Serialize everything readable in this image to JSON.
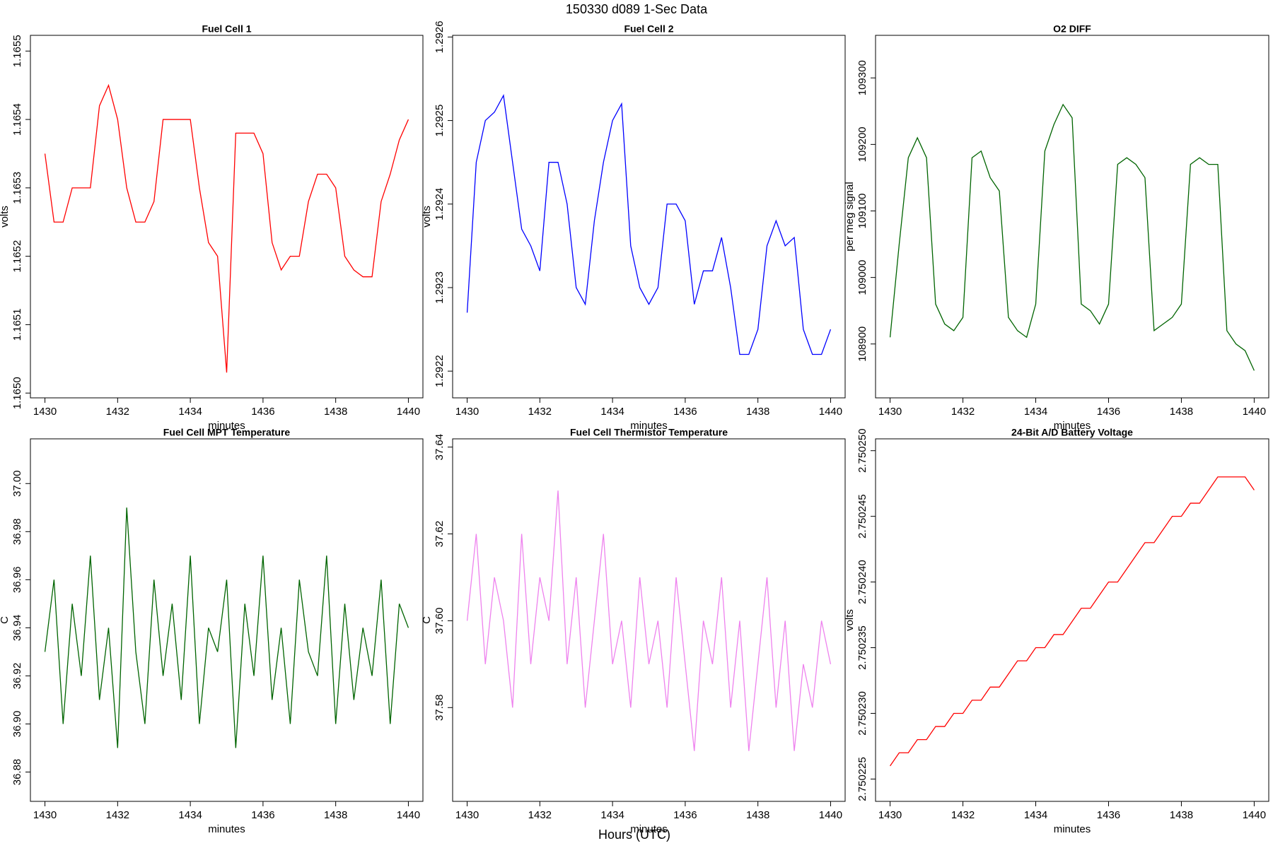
{
  "suptitle": "150330   d089   1-Sec Data",
  "supxlabel": "Hours (UTC)",
  "chart_data": [
    {
      "type": "line",
      "title": "Fuel Cell 1",
      "xlabel": "minutes",
      "ylabel": "volts",
      "x": [
        1430,
        1430.25,
        1430.5,
        1430.75,
        1431,
        1431.25,
        1431.5,
        1431.75,
        1432,
        1432.25,
        1432.5,
        1432.75,
        1433,
        1433.25,
        1433.5,
        1433.75,
        1434,
        1434.25,
        1434.5,
        1434.75,
        1435,
        1435.25,
        1435.5,
        1435.75,
        1436,
        1436.25,
        1436.5,
        1436.75,
        1437,
        1437.25,
        1437.5,
        1437.75,
        1438,
        1438.25,
        1438.5,
        1438.75,
        1439,
        1439.25,
        1439.5,
        1439.75,
        1440
      ],
      "series": [
        {
          "color": "#ff0000",
          "values": [
            1.16535,
            1.16525,
            1.16525,
            1.1653,
            1.1653,
            1.1653,
            1.16542,
            1.16545,
            1.1654,
            1.1653,
            1.16525,
            1.16525,
            1.16528,
            1.1654,
            1.1654,
            1.1654,
            1.1654,
            1.1653,
            1.16522,
            1.1652,
            1.16503,
            1.16538,
            1.16538,
            1.16538,
            1.16535,
            1.16522,
            1.16518,
            1.1652,
            1.1652,
            1.16528,
            1.16532,
            1.16532,
            1.1653,
            1.1652,
            1.16518,
            1.16517,
            1.16517,
            1.16528,
            1.16532,
            1.16537,
            1.1654
          ]
        }
      ],
      "xlim": [
        1429.6,
        1440.4
      ],
      "xticks": [
        1430,
        1432,
        1434,
        1436,
        1438,
        1440
      ],
      "ylim": [
        1.164993,
        1.165523
      ],
      "yticks": [
        {
          "value": 1.165,
          "label": "1.1650"
        },
        1.1651,
        1.1652,
        1.1653,
        1.1654,
        1.1655
      ]
    },
    {
      "type": "line",
      "title": "Fuel Cell 2",
      "xlabel": "minutes",
      "ylabel": "volts",
      "x": [
        1430,
        1430.25,
        1430.5,
        1430.75,
        1431,
        1431.25,
        1431.5,
        1431.75,
        1432,
        1432.25,
        1432.5,
        1432.75,
        1433,
        1433.25,
        1433.5,
        1433.75,
        1434,
        1434.25,
        1434.5,
        1434.75,
        1435,
        1435.25,
        1435.5,
        1435.75,
        1436,
        1436.25,
        1436.5,
        1436.75,
        1437,
        1437.25,
        1437.5,
        1437.75,
        1438,
        1438.25,
        1438.5,
        1438.75,
        1439,
        1439.25,
        1439.5,
        1439.75,
        1440
      ],
      "series": [
        {
          "color": "#0000ff",
          "values": [
            1.29227,
            1.29245,
            1.2925,
            1.29251,
            1.29253,
            1.29245,
            1.29237,
            1.29235,
            1.29232,
            1.29245,
            1.29245,
            1.2924,
            1.2923,
            1.29228,
            1.29238,
            1.29245,
            1.2925,
            1.29252,
            1.29235,
            1.2923,
            1.29228,
            1.2923,
            1.2924,
            1.2924,
            1.29238,
            1.29228,
            1.29232,
            1.29232,
            1.29236,
            1.2923,
            1.29222,
            1.29222,
            1.29225,
            1.29235,
            1.29238,
            1.29235,
            1.29236,
            1.29225,
            1.29222,
            1.29222,
            1.29225
          ]
        }
      ],
      "xlim": [
        1429.6,
        1440.4
      ],
      "xticks": [
        1430,
        1432,
        1434,
        1436,
        1438,
        1440
      ],
      "ylim": [
        1.292168,
        1.292602
      ],
      "yticks": [
        1.2922,
        1.2923,
        1.2924,
        1.2925,
        1.2926
      ]
    },
    {
      "type": "line",
      "title": "O2 DIFF",
      "xlabel": "minutes",
      "ylabel": "per meg signal",
      "x": [
        1430,
        1430.25,
        1430.5,
        1430.75,
        1431,
        1431.25,
        1431.5,
        1431.75,
        1432,
        1432.25,
        1432.5,
        1432.75,
        1433,
        1433.25,
        1433.5,
        1433.75,
        1434,
        1434.25,
        1434.5,
        1434.75,
        1435,
        1435.25,
        1435.5,
        1435.75,
        1436,
        1436.25,
        1436.5,
        1436.75,
        1437,
        1437.25,
        1437.5,
        1437.75,
        1438,
        1438.25,
        1438.5,
        1438.75,
        1439,
        1439.25,
        1439.5,
        1439.75,
        1440
      ],
      "series": [
        {
          "color": "#006400",
          "values": [
            108910,
            109050,
            109180,
            109210,
            109180,
            108960,
            108930,
            108920,
            108940,
            109180,
            109190,
            109150,
            109130,
            108940,
            108920,
            108910,
            108960,
            109190,
            109230,
            109260,
            109240,
            108960,
            108950,
            108930,
            108960,
            109170,
            109180,
            109170,
            109150,
            108920,
            108930,
            108940,
            108960,
            109170,
            109180,
            109170,
            109170,
            108920,
            108900,
            108890,
            108860
          ]
        }
      ],
      "xlim": [
        1429.6,
        1440.4
      ],
      "xticks": [
        1430,
        1432,
        1434,
        1436,
        1438,
        1440
      ],
      "ylim": [
        108819,
        109364
      ],
      "yticks": [
        108900,
        109000,
        109100,
        109200,
        109300
      ]
    },
    {
      "type": "line",
      "title": "Fuel Cell MPT Temperature",
      "xlabel": "minutes",
      "ylabel": "C",
      "x": [
        1430,
        1430.25,
        1430.5,
        1430.75,
        1431,
        1431.25,
        1431.5,
        1431.75,
        1432,
        1432.25,
        1432.5,
        1432.75,
        1433,
        1433.25,
        1433.5,
        1433.75,
        1434,
        1434.25,
        1434.5,
        1434.75,
        1435,
        1435.25,
        1435.5,
        1435.75,
        1436,
        1436.25,
        1436.5,
        1436.75,
        1437,
        1437.25,
        1437.5,
        1437.75,
        1438,
        1438.25,
        1438.5,
        1438.75,
        1439,
        1439.25,
        1439.5,
        1439.75,
        1440
      ],
      "series": [
        {
          "color": "#006400",
          "values": [
            36.93,
            36.96,
            36.9,
            36.95,
            36.92,
            36.97,
            36.91,
            36.94,
            36.89,
            36.99,
            36.93,
            36.9,
            36.96,
            36.92,
            36.95,
            36.91,
            36.97,
            36.9,
            36.94,
            36.93,
            36.96,
            36.89,
            36.95,
            36.92,
            36.97,
            36.91,
            36.94,
            36.9,
            36.96,
            36.93,
            36.92,
            36.97,
            36.9,
            36.95,
            36.91,
            36.94,
            36.92,
            36.96,
            36.9,
            36.95,
            36.94
          ]
        }
      ],
      "xlim": [
        1429.6,
        1440.4
      ],
      "xticks": [
        1430,
        1432,
        1434,
        1436,
        1438,
        1440
      ],
      "ylim": [
        36.8678,
        37.0186
      ],
      "yticks": [
        36.88,
        {
          "value": 36.9,
          "label": "36.90"
        },
        36.92,
        36.94,
        36.96,
        36.98,
        {
          "value": 37,
          "label": "37.00"
        }
      ]
    },
    {
      "type": "line",
      "title": "Fuel Cell Thermistor Temperature",
      "xlabel": "minutes",
      "ylabel": "C",
      "x": [
        1430,
        1430.25,
        1430.5,
        1430.75,
        1431,
        1431.25,
        1431.5,
        1431.75,
        1432,
        1432.25,
        1432.5,
        1432.75,
        1433,
        1433.25,
        1433.5,
        1433.75,
        1434,
        1434.25,
        1434.5,
        1434.75,
        1435,
        1435.25,
        1435.5,
        1435.75,
        1436,
        1436.25,
        1436.5,
        1436.75,
        1437,
        1437.25,
        1437.5,
        1437.75,
        1438,
        1438.25,
        1438.5,
        1438.75,
        1439,
        1439.25,
        1439.5,
        1439.75,
        1440
      ],
      "series": [
        {
          "color": "#ee82ee",
          "values": [
            37.6,
            37.62,
            37.59,
            37.61,
            37.6,
            37.58,
            37.62,
            37.59,
            37.61,
            37.6,
            37.63,
            37.59,
            37.61,
            37.58,
            37.6,
            37.62,
            37.59,
            37.6,
            37.58,
            37.61,
            37.59,
            37.6,
            37.58,
            37.61,
            37.59,
            37.57,
            37.6,
            37.59,
            37.61,
            37.58,
            37.6,
            37.57,
            37.59,
            37.61,
            37.58,
            37.6,
            37.57,
            37.59,
            37.58,
            37.6,
            37.59
          ]
        }
      ],
      "xlim": [
        1429.6,
        1440.4
      ],
      "xticks": [
        1430,
        1432,
        1434,
        1436,
        1438,
        1440
      ],
      "ylim": [
        37.5584,
        37.6419
      ],
      "yticks": [
        37.58,
        {
          "value": 37.6,
          "label": "37.60"
        },
        37.62,
        37.64
      ]
    },
    {
      "type": "line",
      "title": "24-Bit A/D Battery Voltage",
      "xlabel": "minutes",
      "ylabel": "volts",
      "x": [
        1430,
        1430.25,
        1430.5,
        1430.75,
        1431,
        1431.25,
        1431.5,
        1431.75,
        1432,
        1432.25,
        1432.5,
        1432.75,
        1433,
        1433.25,
        1433.5,
        1433.75,
        1434,
        1434.25,
        1434.5,
        1434.75,
        1435,
        1435.25,
        1435.5,
        1435.75,
        1436,
        1436.25,
        1436.5,
        1436.75,
        1437,
        1437.25,
        1437.5,
        1437.75,
        1438,
        1438.25,
        1438.5,
        1438.75,
        1439,
        1439.25,
        1439.5,
        1439.75,
        1440
      ],
      "series": [
        {
          "color": "#ff0000",
          "values": [
            2.750226,
            2.750227,
            2.750227,
            2.750228,
            2.750228,
            2.750229,
            2.750229,
            2.75023,
            2.75023,
            2.750231,
            2.750231,
            2.750232,
            2.750232,
            2.750233,
            2.750234,
            2.750234,
            2.750235,
            2.750235,
            2.750236,
            2.750236,
            2.750237,
            2.750238,
            2.750238,
            2.750239,
            2.75024,
            2.75024,
            2.750241,
            2.750242,
            2.750243,
            2.750243,
            2.750244,
            2.750245,
            2.750245,
            2.750246,
            2.750246,
            2.750247,
            2.750248,
            2.750248,
            2.750248,
            2.750248,
            2.750247
          ]
        }
      ],
      "xlim": [
        1429.6,
        1440.4
      ],
      "xticks": [
        1430,
        1432,
        1434,
        1436,
        1438,
        1440
      ],
      "ylim": [
        2.7502233,
        2.7502509
      ],
      "yticks": [
        2.750225,
        {
          "value": 2.75023,
          "label": "2.750230"
        },
        2.750235,
        {
          "value": 2.75024,
          "label": "2.750240"
        },
        2.750245,
        {
          "value": 2.75025,
          "label": "2.750250"
        }
      ]
    }
  ]
}
